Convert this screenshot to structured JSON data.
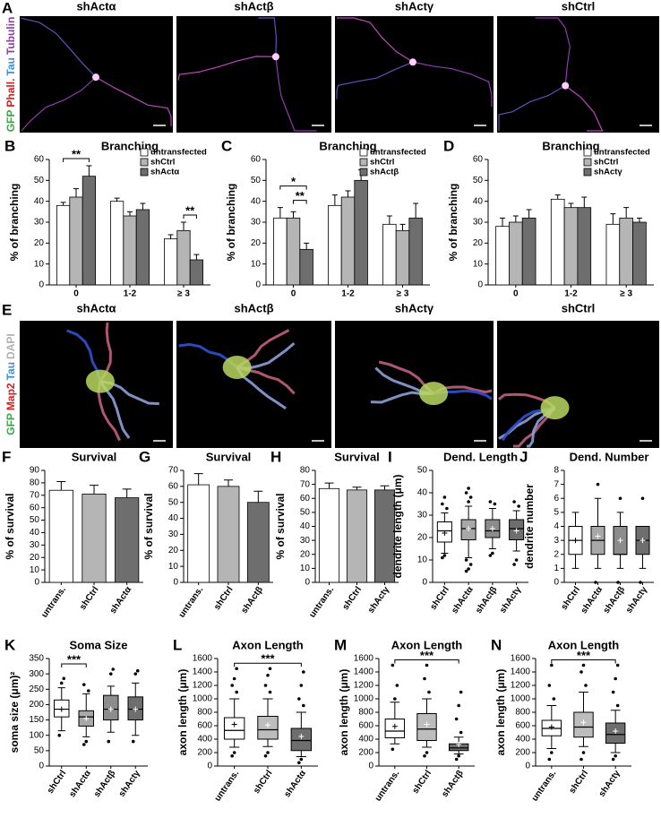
{
  "figure": {
    "image_rows": [
      {
        "panel": "A",
        "labels": [
          "shActα",
          "shActβ",
          "shActγ",
          "shCtrl"
        ],
        "stains": [
          {
            "text": "GFP",
            "color": "#3fa34d"
          },
          {
            "text": "Phall.",
            "color": "#d62020"
          },
          {
            "text": "Tau",
            "color": "#3a8fd0"
          },
          {
            "text": "Tubulin",
            "color": "#8e3ca8"
          }
        ]
      },
      {
        "panel": "E",
        "labels": [
          "shActα",
          "shActβ",
          "shActγ",
          "shCtrl"
        ],
        "stains": [
          {
            "text": "GFP",
            "color": "#3fa34d"
          },
          {
            "text": "Map2",
            "color": "#d62020"
          },
          {
            "text": "Tau",
            "color": "#3a8fd0"
          },
          {
            "text": "DAPI",
            "color": "#b0b0b0"
          }
        ]
      }
    ]
  },
  "chart_data": [
    {
      "panel": "B",
      "type": "bar",
      "title": "Branching",
      "ylabel": "% of branching",
      "categories": [
        "0",
        "1-2",
        "≥ 3"
      ],
      "series": [
        {
          "name": "untransfected",
          "color": "#ffffff",
          "values": [
            38,
            40,
            22
          ],
          "errors": [
            1.5,
            1.5,
            2
          ]
        },
        {
          "name": "shCtrl",
          "color": "#b5b5b5",
          "values": [
            42,
            33,
            26
          ],
          "errors": [
            4,
            2,
            4
          ]
        },
        {
          "name": "shActα",
          "color": "#6e6e6e",
          "values": [
            52,
            36,
            12
          ],
          "errors": [
            5,
            3,
            2.5
          ]
        }
      ],
      "ylim": [
        0,
        60
      ],
      "yticks": [
        0,
        10,
        20,
        30,
        40,
        50,
        60
      ],
      "legend": "upper right",
      "annotations": [
        {
          "text": "**",
          "category": "0",
          "between": [
            "untransfected",
            "shActα"
          ]
        },
        {
          "text": "**",
          "category": "≥ 3",
          "between": [
            "shCtrl",
            "shActα"
          ]
        }
      ]
    },
    {
      "panel": "C",
      "type": "bar",
      "title": "Branching",
      "ylabel": "% of branching",
      "categories": [
        "0",
        "1-2",
        "≥ 3"
      ],
      "series": [
        {
          "name": "untransfected",
          "color": "#ffffff",
          "values": [
            32,
            38,
            29
          ],
          "errors": [
            5,
            5,
            4
          ]
        },
        {
          "name": "shCtrl",
          "color": "#b5b5b5",
          "values": [
            32,
            42,
            26
          ],
          "errors": [
            3,
            3,
            3
          ]
        },
        {
          "name": "shActβ",
          "color": "#6e6e6e",
          "values": [
            17,
            50,
            32
          ],
          "errors": [
            3,
            5,
            7
          ]
        }
      ],
      "ylim": [
        0,
        60
      ],
      "yticks": [
        0,
        10,
        20,
        30,
        40,
        50,
        60
      ],
      "legend": "upper right",
      "annotations": [
        {
          "text": "**",
          "category": "0",
          "between": [
            "shCtrl",
            "shActβ"
          ]
        },
        {
          "text": "*",
          "category": "0",
          "between": [
            "untransfected",
            "shActβ"
          ]
        }
      ]
    },
    {
      "panel": "D",
      "type": "bar",
      "title": "Branching",
      "ylabel": "% of branching",
      "categories": [
        "0",
        "1-2",
        "≥ 3"
      ],
      "series": [
        {
          "name": "untransfected",
          "color": "#ffffff",
          "values": [
            28,
            41,
            29
          ],
          "errors": [
            4,
            2,
            5
          ]
        },
        {
          "name": "shCtrl",
          "color": "#b5b5b5",
          "values": [
            30,
            37,
            32
          ],
          "errors": [
            3,
            2,
            5
          ]
        },
        {
          "name": "shActγ",
          "color": "#6e6e6e",
          "values": [
            32,
            37,
            30
          ],
          "errors": [
            4,
            5,
            2
          ]
        }
      ],
      "ylim": [
        0,
        60
      ],
      "yticks": [
        0,
        10,
        20,
        30,
        40,
        50,
        60
      ],
      "legend": "upper right"
    },
    {
      "panel": "F",
      "type": "bar",
      "title": "Survival",
      "ylabel": "% of survival",
      "categories": [
        "untrans.",
        "shCtrl",
        "shActα"
      ],
      "values": [
        74,
        71,
        68
      ],
      "errors": [
        7,
        7,
        7
      ],
      "colors": [
        "#ffffff",
        "#b5b5b5",
        "#6e6e6e"
      ],
      "ylim": [
        0,
        90
      ],
      "yticks": [
        0,
        10,
        20,
        30,
        40,
        50,
        60,
        70,
        80,
        90
      ]
    },
    {
      "panel": "G",
      "type": "bar",
      "title": "Survival",
      "ylabel": "% of survival",
      "categories": [
        "untrans.",
        "shCtrl",
        "shActβ"
      ],
      "values": [
        61,
        60,
        50
      ],
      "errors": [
        7,
        4,
        7
      ],
      "colors": [
        "#ffffff",
        "#b5b5b5",
        "#6e6e6e"
      ],
      "ylim": [
        0,
        70
      ],
      "yticks": [
        0,
        10,
        20,
        30,
        40,
        50,
        60,
        70
      ]
    },
    {
      "panel": "H",
      "type": "bar",
      "title": "Survival",
      "ylabel": "% of survival",
      "categories": [
        "untrans.",
        "shCtrl",
        "shActγ"
      ],
      "values": [
        67,
        66,
        66
      ],
      "errors": [
        4,
        2,
        3
      ],
      "colors": [
        "#ffffff",
        "#b5b5b5",
        "#6e6e6e"
      ],
      "ylim": [
        0,
        80
      ],
      "yticks": [
        0,
        10,
        20,
        30,
        40,
        50,
        60,
        70,
        80
      ]
    },
    {
      "panel": "I",
      "type": "box",
      "title": "Dend. Length",
      "ylabel": "dendrite length (μm)",
      "categories": [
        "shCtrl",
        "shActα",
        "shActβ",
        "shActγ"
      ],
      "colors": [
        "#ffffff",
        "#a8a8a8",
        "#8c8c8c",
        "#6e6e6e"
      ],
      "boxes": [
        {
          "whislo": 13,
          "q1": 18,
          "med": 23,
          "q3": 27,
          "whishi": 31,
          "mean": 22,
          "fliers": [
            11,
            12,
            33,
            35,
            38
          ]
        },
        {
          "whislo": 11,
          "q1": 19,
          "med": 24,
          "q3": 28,
          "whishi": 34,
          "mean": 24,
          "fliers": [
            5,
            6,
            8,
            10,
            36,
            38,
            40,
            42
          ]
        },
        {
          "whislo": 15,
          "q1": 20,
          "med": 23,
          "q3": 28,
          "whishi": 33,
          "mean": 24,
          "fliers": [
            12,
            13,
            35,
            36
          ]
        },
        {
          "whislo": 14,
          "q1": 19,
          "med": 24,
          "q3": 28,
          "whishi": 32,
          "mean": 23,
          "fliers": [
            8,
            10,
            34,
            36
          ]
        }
      ],
      "ylim": [
        0,
        50
      ],
      "yticks": [
        0,
        10,
        20,
        30,
        40,
        50
      ]
    },
    {
      "panel": "J",
      "type": "box",
      "title": "Dend. Number",
      "ylabel": "dendrite number",
      "categories": [
        "shCtrl",
        "shActα",
        "shActβ",
        "shActγ"
      ],
      "colors": [
        "#ffffff",
        "#a8a8a8",
        "#8c8c8c",
        "#6e6e6e"
      ],
      "boxes": [
        {
          "whislo": 1,
          "q1": 2,
          "med": 3,
          "q3": 4,
          "whishi": 5,
          "mean": 3,
          "fliers": []
        },
        {
          "whislo": 1,
          "q1": 2,
          "med": 3,
          "q3": 4,
          "whishi": 6,
          "mean": 3.3,
          "fliers": [
            0,
            7
          ]
        },
        {
          "whislo": 1,
          "q1": 2,
          "med": 2,
          "q3": 4,
          "whishi": 5,
          "mean": 3,
          "fliers": [
            0,
            6
          ]
        },
        {
          "whislo": 1,
          "q1": 2,
          "med": 3,
          "q3": 4,
          "whishi": 4,
          "mean": 3,
          "fliers": [
            0,
            6
          ]
        }
      ],
      "ylim": [
        0,
        8
      ],
      "yticks": [
        0,
        1,
        2,
        3,
        4,
        5,
        6,
        7,
        8
      ]
    },
    {
      "panel": "K",
      "type": "box",
      "title": "Soma Size",
      "ylabel": "soma size (μm)²",
      "categories": [
        "shCtrl",
        "shActα",
        "shActβ",
        "shActγ"
      ],
      "colors": [
        "#ffffff",
        "#a8a8a8",
        "#8c8c8c",
        "#6e6e6e"
      ],
      "boxes": [
        {
          "whislo": 115,
          "q1": 160,
          "med": 185,
          "q3": 215,
          "whishi": 255,
          "mean": 185,
          "fliers": [
            100,
            270,
            285
          ]
        },
        {
          "whislo": 95,
          "q1": 130,
          "med": 160,
          "q3": 180,
          "whishi": 235,
          "mean": 155,
          "fliers": [
            70,
            80,
            245,
            265
          ]
        },
        {
          "whislo": 110,
          "q1": 150,
          "med": 185,
          "q3": 230,
          "whishi": 260,
          "mean": 185,
          "fliers": [
            80,
            300,
            315
          ]
        },
        {
          "whislo": 100,
          "q1": 150,
          "med": 185,
          "q3": 225,
          "whishi": 270,
          "mean": 185,
          "fliers": [
            80,
            300,
            310
          ]
        }
      ],
      "ylim": [
        0,
        350
      ],
      "yticks": [
        0,
        50,
        100,
        150,
        200,
        250,
        300,
        350
      ],
      "annotations": [
        {
          "text": "***",
          "between": [
            "shCtrl",
            "shActα"
          ]
        }
      ]
    },
    {
      "panel": "L",
      "type": "box",
      "title": "Axon Length",
      "ylabel": "axon length (μm)",
      "categories": [
        "untrans.",
        "shCtrl",
        "shActα"
      ],
      "colors": [
        "#ffffff",
        "#bdbdbd",
        "#6e6e6e"
      ],
      "boxes": [
        {
          "whislo": 280,
          "q1": 400,
          "med": 530,
          "q3": 720,
          "whishi": 1000,
          "mean": 620,
          "fliers": [
            150,
            200,
            1100,
            1200,
            1300,
            1450
          ]
        },
        {
          "whislo": 290,
          "q1": 400,
          "med": 540,
          "q3": 740,
          "whishi": 1000,
          "mean": 610,
          "fliers": [
            150,
            200,
            1100,
            1200,
            1350,
            1450
          ]
        },
        {
          "whislo": 140,
          "q1": 230,
          "med": 380,
          "q3": 560,
          "whishi": 800,
          "mean": 440,
          "fliers": [
            50,
            100,
            900,
            1000,
            1200,
            1400
          ]
        }
      ],
      "ylim": [
        0,
        1600
      ],
      "yticks": [
        0,
        200,
        400,
        600,
        800,
        1000,
        1200,
        1400,
        1600
      ],
      "annotations": [
        {
          "text": "***",
          "between": [
            "untrans.",
            "shActα"
          ]
        }
      ]
    },
    {
      "panel": "M",
      "type": "box",
      "title": "Axon Length",
      "ylabel": "axon length (μm)",
      "categories": [
        "untrans.",
        "shCtrl",
        "shActβ"
      ],
      "colors": [
        "#ffffff",
        "#bdbdbd",
        "#6e6e6e"
      ],
      "boxes": [
        {
          "whislo": 330,
          "q1": 420,
          "med": 520,
          "q3": 700,
          "whishi": 950,
          "mean": 590,
          "fliers": [
            250,
            1000,
            1200,
            1500
          ]
        },
        {
          "whislo": 280,
          "q1": 380,
          "med": 550,
          "q3": 780,
          "whishi": 1000,
          "mean": 620,
          "fliers": [
            150,
            200,
            1100,
            1300,
            1500
          ]
        },
        {
          "whislo": 180,
          "q1": 230,
          "med": 270,
          "q3": 330,
          "whishi": 430,
          "mean": 320,
          "fliers": [
            100,
            150,
            500,
            700,
            900,
            1100
          ]
        }
      ],
      "ylim": [
        0,
        1600
      ],
      "yticks": [
        0,
        200,
        400,
        600,
        800,
        1000,
        1200,
        1400,
        1600
      ],
      "annotations": [
        {
          "text": "***",
          "between": [
            "untrans.",
            "shActβ"
          ]
        }
      ]
    },
    {
      "panel": "N",
      "type": "box",
      "title": "Axon Length",
      "ylabel": "axon length (μm)",
      "categories": [
        "untrans.",
        "shCtrl",
        "shActγ"
      ],
      "colors": [
        "#ffffff",
        "#bdbdbd",
        "#6e6e6e"
      ],
      "boxes": [
        {
          "whislo": 260,
          "q1": 450,
          "med": 560,
          "q3": 680,
          "whishi": 900,
          "mean": 580,
          "fliers": [
            100,
            200,
            1000,
            1200,
            1500
          ]
        },
        {
          "whislo": 290,
          "q1": 430,
          "med": 580,
          "q3": 800,
          "whishi": 1100,
          "mean": 650,
          "fliers": [
            100,
            200,
            1200,
            1400,
            1500
          ]
        },
        {
          "whislo": 200,
          "q1": 340,
          "med": 470,
          "q3": 640,
          "whishi": 830,
          "mean": 520,
          "fliers": [
            100,
            150,
            900,
            1100,
            1300,
            1500
          ]
        }
      ],
      "ylim": [
        0,
        1600
      ],
      "yticks": [
        0,
        200,
        400,
        600,
        800,
        1000,
        1200,
        1400,
        1600
      ],
      "annotations": [
        {
          "text": "***",
          "between": [
            "untrans.",
            "shActγ"
          ]
        }
      ]
    }
  ]
}
